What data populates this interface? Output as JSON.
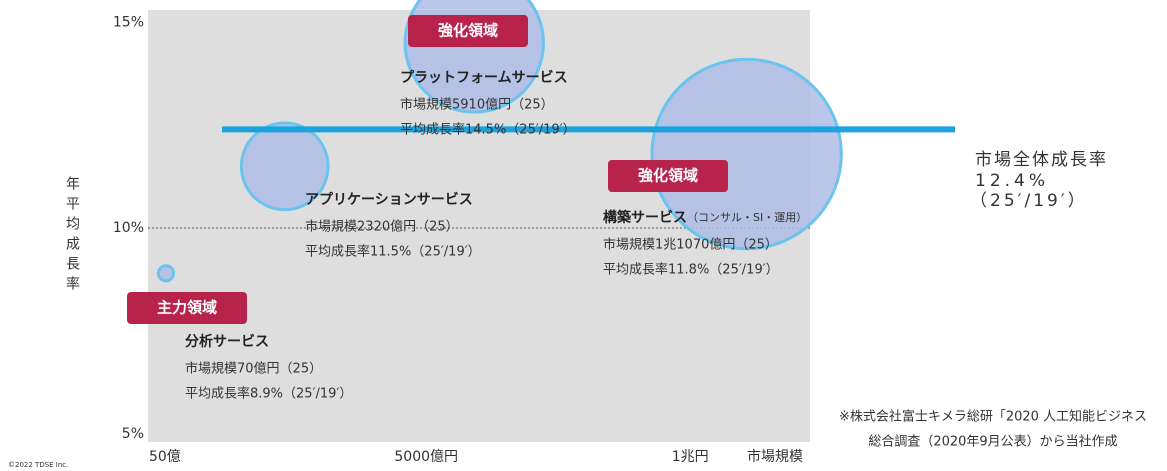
{
  "chart_data": {
    "type": "bubble",
    "x_label": "市場規模",
    "y_label": "年平均成長率",
    "xlim": [
      -270,
      12270
    ],
    "xticks": [
      {
        "value": 50,
        "label": "50億"
      },
      {
        "value": 5000,
        "label": "5000億円"
      },
      {
        "value": 10000,
        "label": "1兆円"
      }
    ],
    "ylim": [
      4.8,
      15.3
    ],
    "yticks": [
      {
        "value": 5,
        "label": "5%"
      },
      {
        "value": 10,
        "label": "10%"
      },
      {
        "value": 15,
        "label": "15%"
      }
    ],
    "color": "#aebde8",
    "edge_color": "#6cc4ee",
    "badge_color": "#b8234b",
    "points": [
      {
        "name": "プラットフォームサービス",
        "badge": "強化領域",
        "x": 5910,
        "y": 14.5,
        "size": 5910,
        "size_label": "市場規模5910億円（25）",
        "growth_label": "平均成長率14.5%（25′/19′）"
      },
      {
        "name": "アプリケーションサービス",
        "x": 2320,
        "y": 11.5,
        "size": 2320,
        "size_label": "市場規模2320億円（25）",
        "growth_label": "平均成長率11.5%（25′/19′）"
      },
      {
        "name": "構築サービス",
        "note": "（コンサル・SI・運用）",
        "badge": "強化領域",
        "x": 11070,
        "y": 11.8,
        "size": 11070,
        "size_label": "市場規模1兆1070億円（25）",
        "growth_label": "平均成長率11.8%（25′/19′）"
      },
      {
        "name": "分析サービス",
        "badge": "主力領域",
        "x": 70,
        "y": 8.9,
        "size": 70,
        "size_label": "市場規模70億円（25）",
        "growth_label": "平均成長率8.9%（25′/19′）"
      }
    ],
    "reference_line": {
      "name": "市場全体成長率",
      "value": 12.4,
      "value_label": "12.4%",
      "period": "（25′/19′）",
      "color": "#1ba3dd"
    },
    "footnote": [
      "※株式会社富士キメラ総研「2020 人工知能ビジネス",
      "総合調査（2020年9月公表）から当社作成"
    ],
    "copyright": "©2022 TDSE Inc."
  }
}
